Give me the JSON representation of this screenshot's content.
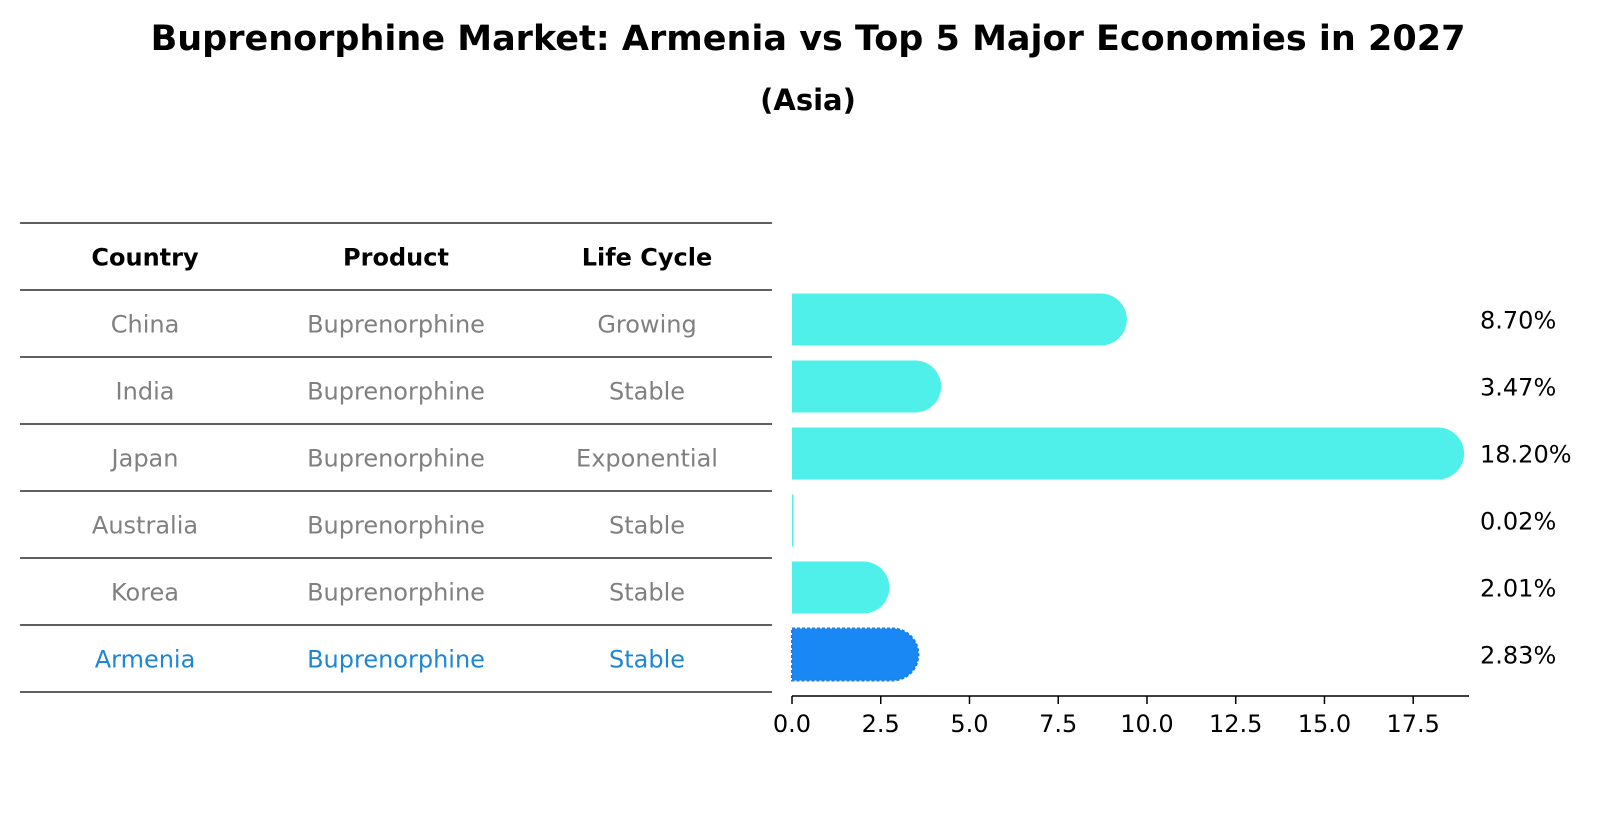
{
  "title": "Buprenorphine Market: Armenia vs Top 5 Major Economies in 2027",
  "subtitle": "(Asia)",
  "table": {
    "headers": [
      "Country",
      "Product",
      "Life Cycle"
    ],
    "rows": [
      {
        "country": "China",
        "product": "Buprenorphine",
        "life_cycle": "Growing",
        "highlight": false
      },
      {
        "country": "India",
        "product": "Buprenorphine",
        "life_cycle": "Stable",
        "highlight": false
      },
      {
        "country": "Japan",
        "product": "Buprenorphine",
        "life_cycle": "Exponential",
        "highlight": false
      },
      {
        "country": "Australia",
        "product": "Buprenorphine",
        "life_cycle": "Stable",
        "highlight": false
      },
      {
        "country": "Korea",
        "product": "Buprenorphine",
        "life_cycle": "Stable",
        "highlight": false
      },
      {
        "country": "Armenia",
        "product": "Buprenorphine",
        "life_cycle": "Stable",
        "highlight": true
      }
    ]
  },
  "colors": {
    "bar": "#4ff0ea",
    "highlight_bar": "#1a88f4",
    "highlight_text": "#1f86d4",
    "muted_text": "#808080",
    "ink": "#000000"
  },
  "chart_data": {
    "type": "bar",
    "orientation": "horizontal",
    "categories": [
      "China",
      "India",
      "Japan",
      "Australia",
      "Korea",
      "Armenia"
    ],
    "values": [
      8.7,
      3.47,
      18.2,
      0.02,
      2.01,
      2.83
    ],
    "value_labels": [
      "8.70%",
      "3.47%",
      "18.20%",
      "0.02%",
      "2.01%",
      "2.83%"
    ],
    "xlim": [
      0,
      19.1
    ],
    "xticks": [
      0.0,
      2.5,
      5.0,
      7.5,
      10.0,
      12.5,
      15.0,
      17.5
    ],
    "xtick_labels": [
      "0.0",
      "2.5",
      "5.0",
      "7.5",
      "10.0",
      "12.5",
      "15.0",
      "17.5"
    ],
    "highlight_category": "Armenia",
    "grid": false,
    "legend": "none"
  }
}
